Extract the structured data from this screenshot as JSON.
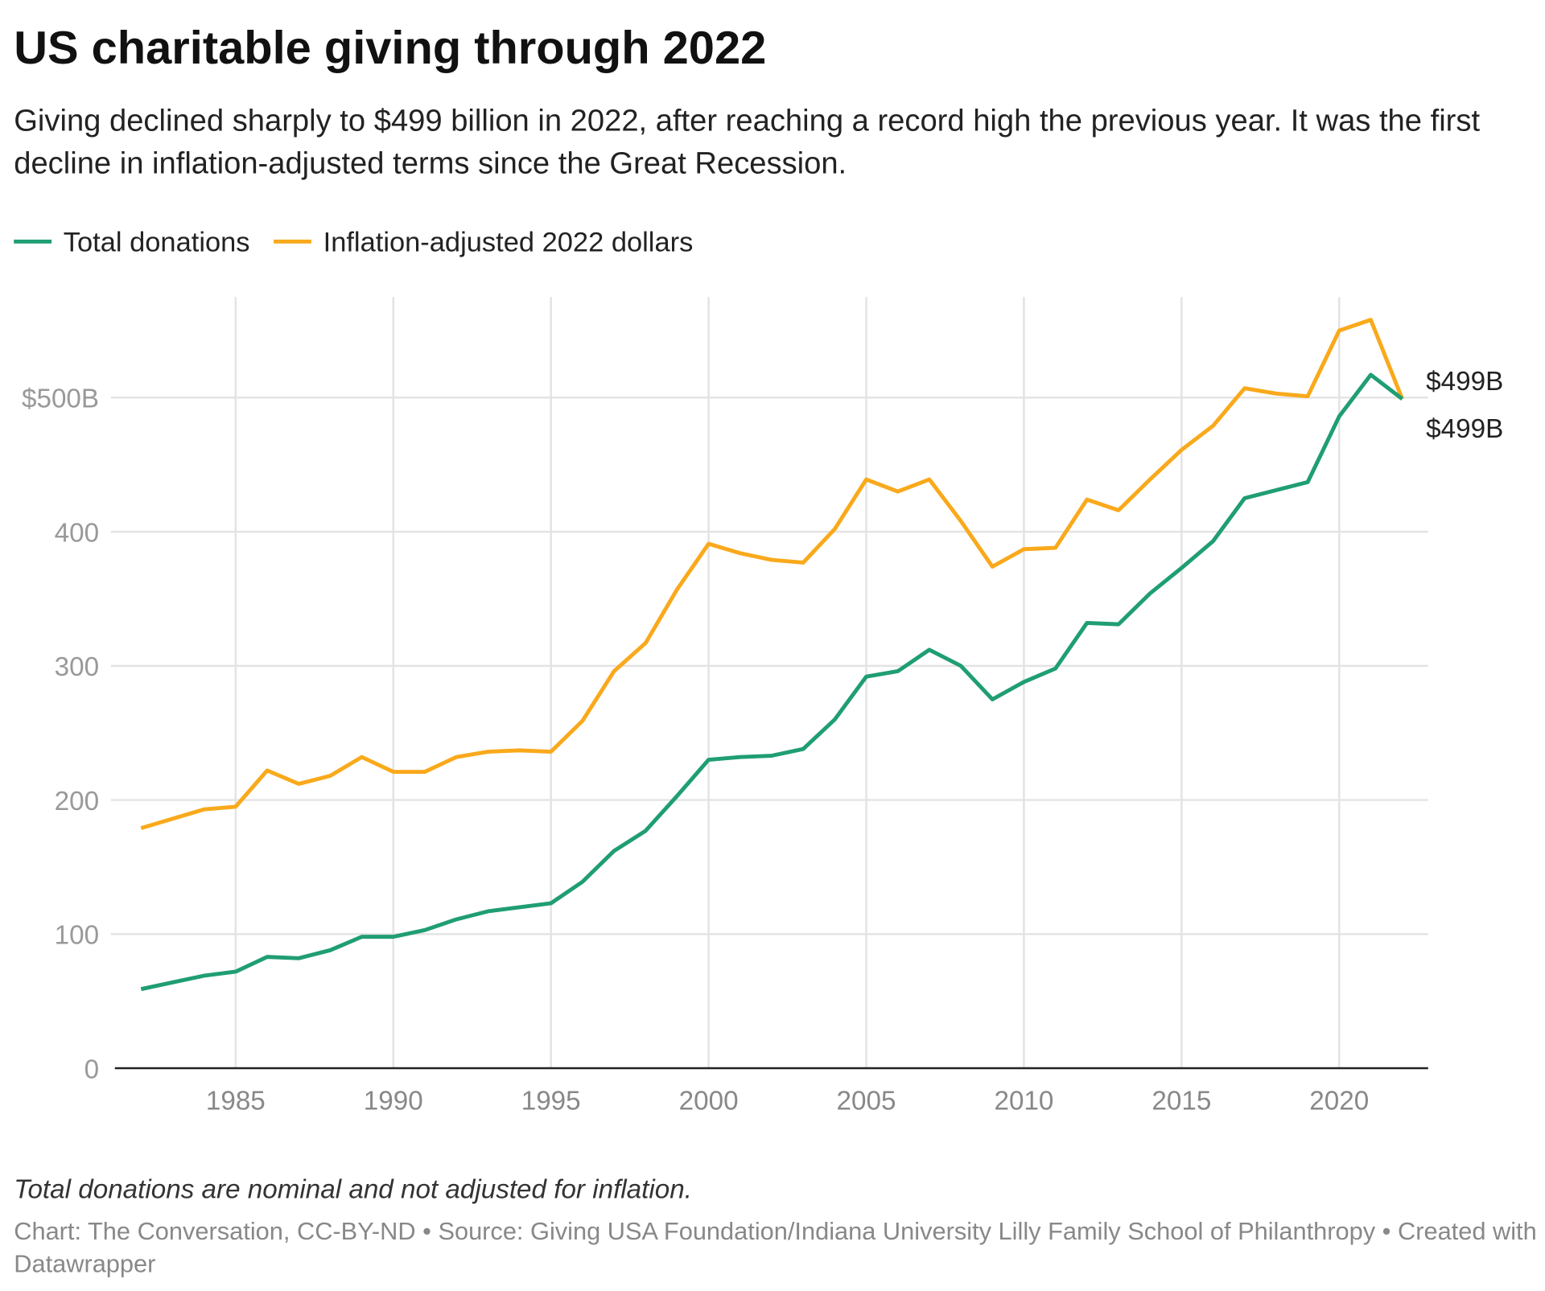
{
  "chart_data": {
    "type": "line",
    "title": "US charitable giving through 2022",
    "subtitle": "Giving declined sharply to $499 billion in 2022, after reaching a record high the previous year. It was the first decline in inflation-adjusted terms since the Great Recession.",
    "note": "Total donations are nominal and not adjusted for inflation.",
    "source": "Chart: The Conversation, CC-BY-ND • Source: Giving USA Foundation/Indiana University Lilly Family School of Philanthropy • Created with Datawrapper",
    "x": [
      1982,
      1983,
      1984,
      1985,
      1986,
      1987,
      1988,
      1989,
      1990,
      1991,
      1992,
      1993,
      1994,
      1995,
      1996,
      1997,
      1998,
      1999,
      2000,
      2001,
      2002,
      2003,
      2004,
      2005,
      2006,
      2007,
      2008,
      2009,
      2010,
      2011,
      2012,
      2013,
      2014,
      2015,
      2016,
      2017,
      2018,
      2019,
      2020,
      2021,
      2022
    ],
    "series": [
      {
        "name": "Total donations",
        "color": "#1f9e72",
        "values": [
          59,
          64,
          69,
          72,
          83,
          82,
          88,
          98,
          98,
          103,
          111,
          117,
          120,
          123,
          139,
          162,
          177,
          203,
          230,
          232,
          233,
          238,
          260,
          292,
          296,
          312,
          300,
          275,
          288,
          298,
          332,
          331,
          354,
          373,
          393,
          425,
          431,
          437,
          486,
          517,
          499
        ],
        "value_labels": [
          null,
          null,
          null,
          null,
          null,
          null,
          null,
          null,
          null,
          null,
          null,
          null,
          null,
          null,
          null,
          null,
          null,
          null,
          null,
          null,
          null,
          null,
          null,
          null,
          null,
          null,
          null,
          null,
          null,
          null,
          null,
          null,
          null,
          null,
          null,
          null,
          null,
          null,
          null,
          null,
          "$499B"
        ]
      },
      {
        "name": "Inflation-adjusted 2022 dollars",
        "color": "#f9a91b",
        "values": [
          179,
          186,
          193,
          195,
          222,
          212,
          218,
          232,
          221,
          221,
          232,
          236,
          237,
          236,
          259,
          296,
          317,
          357,
          391,
          384,
          379,
          377,
          402,
          439,
          430,
          439,
          408,
          374,
          387,
          388,
          424,
          416,
          439,
          461,
          479,
          507,
          503,
          501,
          550,
          558,
          499
        ],
        "value_labels": [
          null,
          null,
          null,
          null,
          null,
          null,
          null,
          null,
          null,
          null,
          null,
          null,
          null,
          null,
          null,
          null,
          null,
          null,
          null,
          null,
          null,
          null,
          null,
          null,
          null,
          null,
          null,
          null,
          null,
          null,
          null,
          null,
          null,
          null,
          null,
          null,
          null,
          null,
          null,
          null,
          "$499B"
        ]
      }
    ],
    "xlim": [
      1981.17,
      2022.82
    ],
    "xticks": [
      1985,
      1990,
      1995,
      2000,
      2005,
      2010,
      2015,
      2020
    ],
    "ylim": [
      0,
      575
    ],
    "yticks": [
      {
        "value": 500,
        "label": "$500B"
      },
      400,
      300,
      200,
      100,
      0
    ],
    "grid": true
  }
}
